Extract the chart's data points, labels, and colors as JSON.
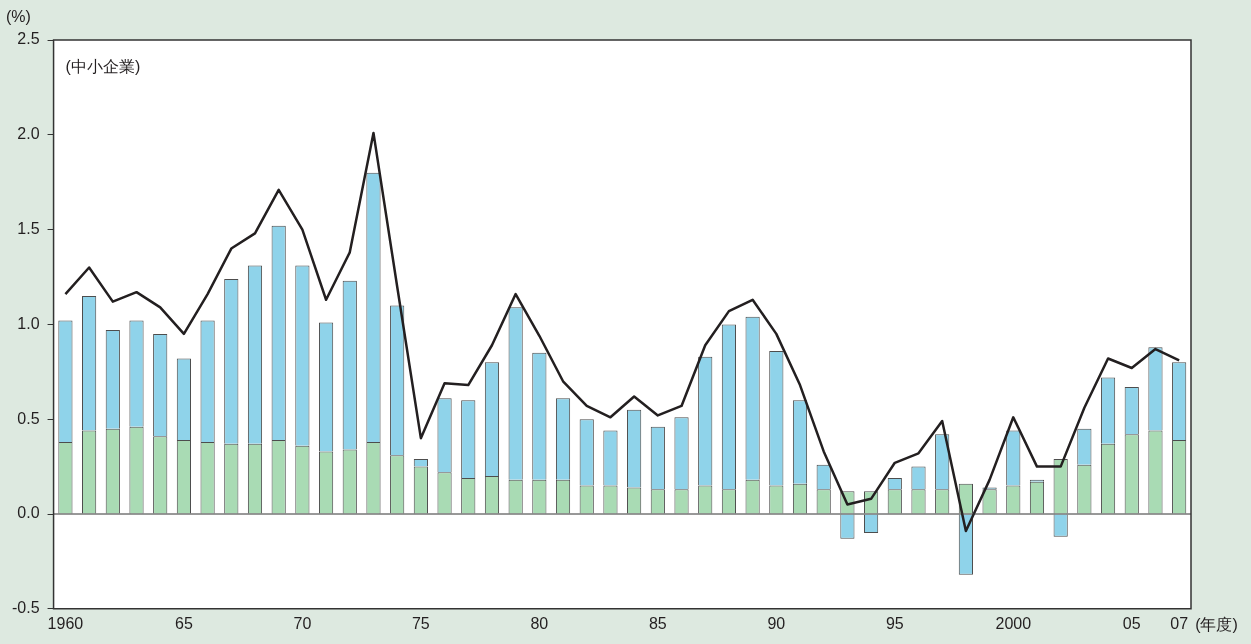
{
  "chart_data": {
    "type": "bar",
    "stacked": true,
    "ylabel": "(%)",
    "xlabel": "(年度)",
    "annotations": [
      "(中小企業)"
    ],
    "categories": [
      "1960",
      null,
      null,
      null,
      null,
      "65",
      null,
      null,
      null,
      null,
      "70",
      null,
      null,
      null,
      null,
      "75",
      null,
      null,
      null,
      null,
      "80",
      null,
      null,
      null,
      null,
      "85",
      null,
      null,
      null,
      null,
      "90",
      null,
      null,
      null,
      null,
      "95",
      null,
      null,
      null,
      null,
      "2000",
      null,
      null,
      null,
      null,
      "05",
      null,
      "07"
    ],
    "series": [
      {
        "color": "#a9dbb4",
        "values": [
          0.38,
          0.44,
          0.45,
          0.46,
          0.41,
          0.39,
          0.38,
          0.37,
          0.37,
          0.39,
          0.36,
          0.33,
          0.34,
          0.38,
          0.31,
          0.25,
          0.22,
          0.19,
          0.2,
          0.18,
          0.18,
          0.18,
          0.15,
          0.15,
          0.14,
          0.13,
          0.13,
          0.15,
          0.13,
          0.18,
          0.15,
          0.16,
          0.13,
          0.12,
          0.12,
          0.13,
          0.13,
          0.13,
          0.16,
          0.13,
          0.15,
          0.17,
          0.29,
          0.26,
          0.37,
          0.42,
          0.44,
          0.39
        ]
      },
      {
        "color": "#8fd3ea",
        "values": [
          0.64,
          0.71,
          0.52,
          0.56,
          0.54,
          0.43,
          0.64,
          0.87,
          0.94,
          1.13,
          0.95,
          0.68,
          0.89,
          1.42,
          0.79,
          0.04,
          0.39,
          0.41,
          0.6,
          0.91,
          0.67,
          0.43,
          0.35,
          0.29,
          0.41,
          0.33,
          0.38,
          0.68,
          0.87,
          0.86,
          0.71,
          0.44,
          0.13,
          -0.13,
          -0.1,
          0.06,
          0.12,
          0.29,
          -0.32,
          0.01,
          0.29,
          0.01,
          -0.12,
          0.19,
          0.35,
          0.25,
          0.44,
          0.41
        ]
      },
      {
        "type": "line",
        "color": "#231f20",
        "values": [
          1.16,
          1.3,
          1.12,
          1.17,
          1.09,
          0.95,
          1.16,
          1.4,
          1.48,
          1.71,
          1.5,
          1.13,
          1.38,
          2.01,
          1.2,
          0.4,
          0.69,
          0.68,
          0.89,
          1.16,
          0.94,
          0.7,
          0.57,
          0.51,
          0.62,
          0.52,
          0.57,
          0.89,
          1.07,
          1.13,
          0.95,
          0.68,
          0.33,
          0.05,
          0.08,
          0.27,
          0.32,
          0.49,
          -0.09,
          0.18,
          0.51,
          0.25,
          0.25,
          0.56,
          0.82,
          0.77,
          0.87,
          0.81
        ]
      }
    ],
    "ylim": [
      -0.5,
      2.5
    ],
    "yticks": [
      {
        "value": -0.5,
        "label": "-0.5"
      },
      {
        "value": 0,
        "label": "0.0"
      },
      {
        "value": 0.5,
        "label": "0.5"
      },
      {
        "value": 1,
        "label": "1.0"
      },
      {
        "value": 1.5,
        "label": "1.5"
      },
      {
        "value": 2,
        "label": "2.0"
      },
      {
        "value": 2.5,
        "label": "2.5"
      }
    ],
    "ref_lines": [
      {
        "axis": "y",
        "value": 0,
        "color": "#333333"
      }
    ],
    "grid": false,
    "legend": false,
    "marker": "none",
    "line_style": "solid"
  }
}
